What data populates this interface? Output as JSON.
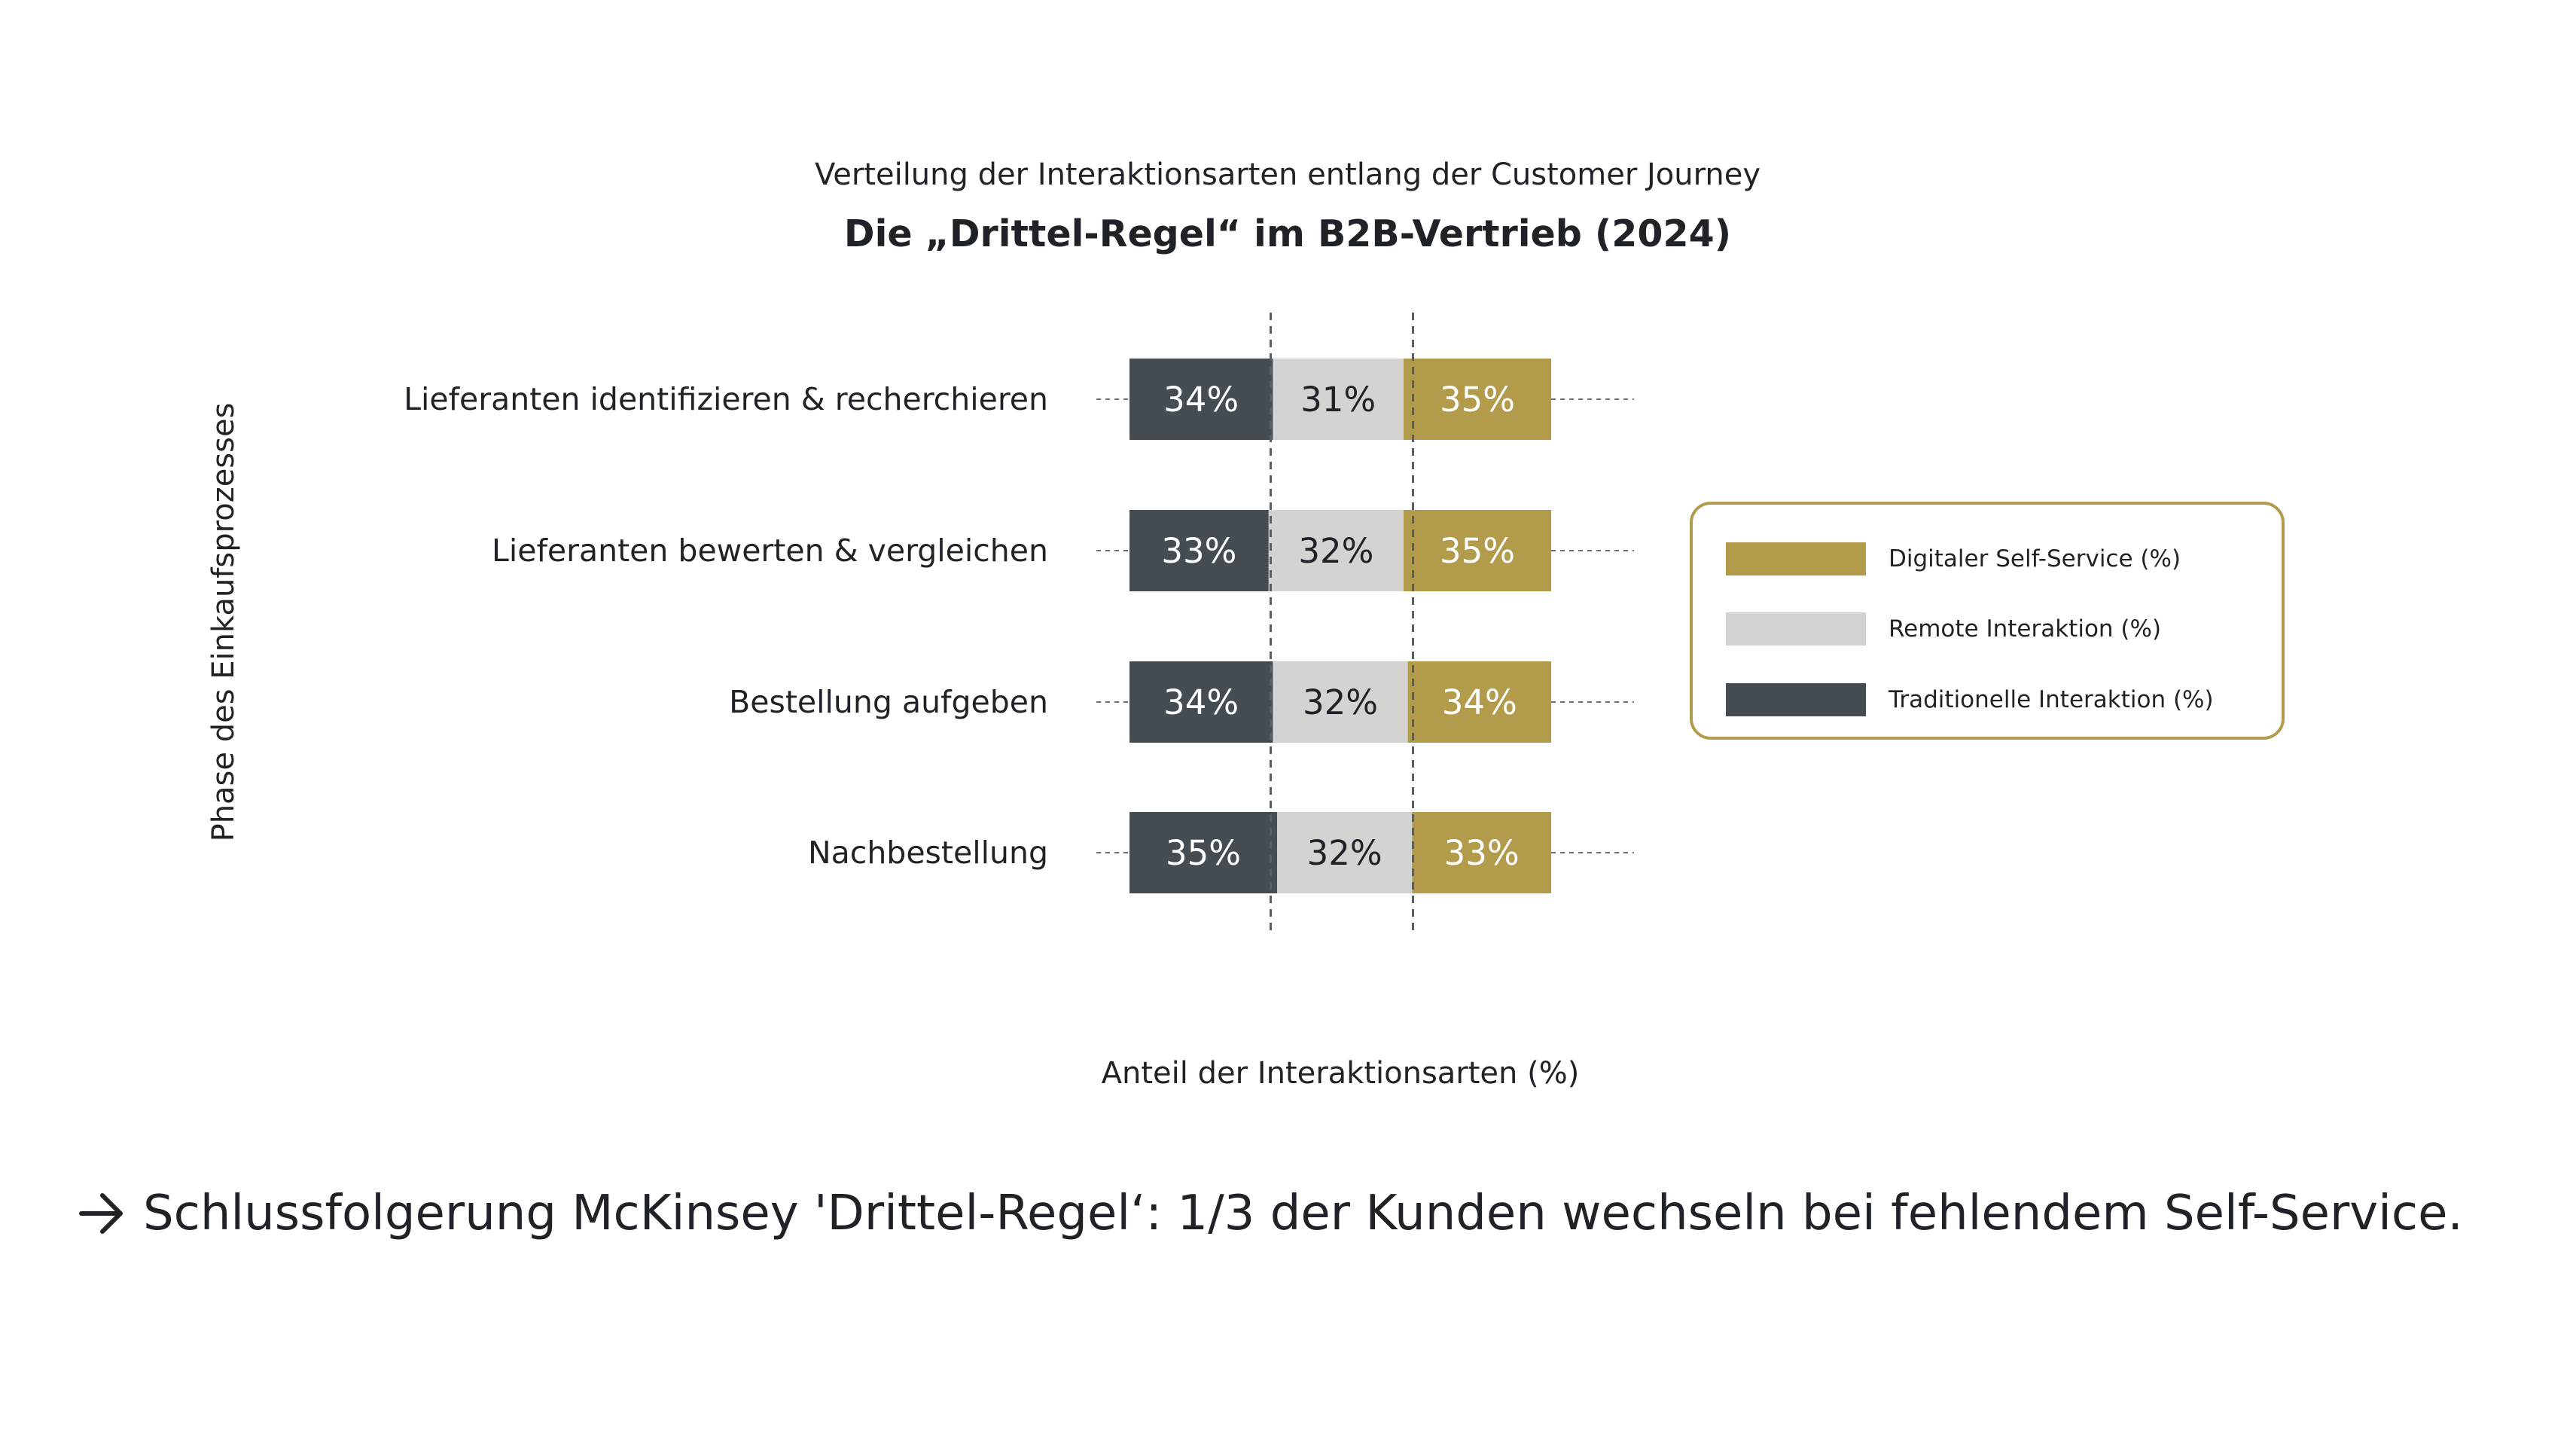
{
  "chart_data": {
    "type": "bar",
    "orientation": "horizontal",
    "stacked": true,
    "subtitle": "Verteilung der Interaktionsarten entlang der Customer Journey",
    "title": "Die „Drittel-Regel“ im B2B-Vertrieb (2024)",
    "xlabel": "Anteil der Interaktionsarten (%)",
    "ylabel": "Phase des Einkaufsprozesses",
    "xlim": [
      0,
      100
    ],
    "categories": [
      "Lieferanten identifizieren & recherchieren",
      "Lieferanten bewerten & vergleichen",
      "Bestellung aufgeben",
      "Nachbestellung"
    ],
    "series": [
      {
        "name": "Traditionelle Interaktion (%)",
        "color": "#454d52",
        "label_color": "#ffffff",
        "values": [
          34,
          33,
          34,
          35
        ],
        "labels": [
          "34%",
          "33%",
          "34%",
          "35%"
        ]
      },
      {
        "name": "Remote Interaktion (%)",
        "color": "#d3d3d2",
        "label_color": "#1f2328",
        "values": [
          31,
          32,
          32,
          32
        ],
        "labels": [
          "31%",
          "32%",
          "32%",
          "32%"
        ]
      },
      {
        "name": "Digitaler Self-Service (%)",
        "color": "#b39b4c",
        "label_color": "#ffffff",
        "values": [
          35,
          35,
          34,
          33
        ],
        "labels": [
          "35%",
          "35%",
          "34%",
          "33%"
        ]
      }
    ],
    "reference_lines": [
      33.3,
      66.7
    ],
    "legend": {
      "position": "right",
      "entries": [
        "Digitaler Self-Service (%)",
        "Remote Interaktion (%)",
        "Traditionelle Interaktion (%)"
      ],
      "colors": [
        "#b39b4c",
        "#d3d3d2",
        "#454d52"
      ]
    }
  },
  "conclusion": {
    "icon": "arrow-right-icon",
    "text": "Schlussfolgerung McKinsey 'Drittel-Regel‘: 1/3 der Kunden wechseln bei fehlendem Self-Service."
  }
}
